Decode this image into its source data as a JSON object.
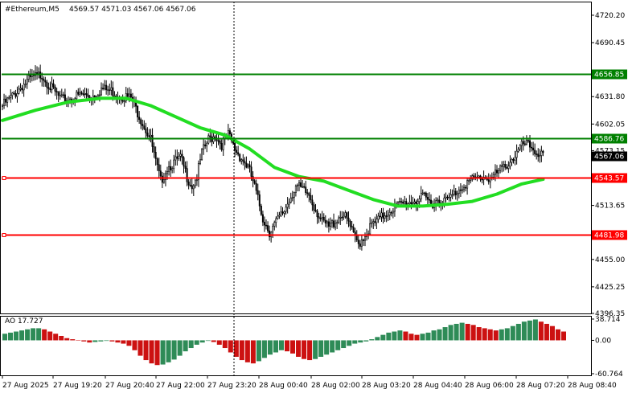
{
  "header": {
    "symbol": "#Ethereum,M5",
    "ohlc": "4569.57 4571.03 4567.06 4567.06"
  },
  "ao_label": "AO 17.727",
  "colors": {
    "background": "#ffffff",
    "candle": "#000000",
    "ma": "#22dd22",
    "resistance": "#008000",
    "support": "#ff0000",
    "ao_up": "#2e8b57",
    "ao_down": "#cc1111"
  },
  "chart_data": {
    "type": "line",
    "price_axis": {
      "ylim": [
        4396.35,
        4735
      ],
      "ticks": [
        "4720.20",
        "4690.45",
        "4631.80",
        "4602.05",
        "4573.15",
        "4513.65",
        "4455.00",
        "4425.25",
        "4396.35"
      ]
    },
    "ao_axis": {
      "ylim": [
        -60.764,
        38.714
      ],
      "ticks": [
        "38.714",
        "0.00",
        "-60.764"
      ]
    },
    "x_ticks": [
      "27 Aug 2025",
      "27 Aug 19:20",
      "27 Aug 20:40",
      "27 Aug 22:00",
      "27 Aug 23:20",
      "28 Aug 00:40",
      "28 Aug 02:00",
      "28 Aug 03:20",
      "28 Aug 04:40",
      "28 Aug 06:00",
      "28 Aug 07:20",
      "28 Aug 08:40"
    ],
    "levels": [
      {
        "value": 4656.85,
        "label": "4656.85",
        "color": "#008000"
      },
      {
        "value": 4586.76,
        "label": "4586.76",
        "color": "#008000"
      },
      {
        "value": 4543.57,
        "label": "4543.57",
        "color": "#ff0000"
      },
      {
        "value": 4481.98,
        "label": "4481.98",
        "color": "#ff0000"
      }
    ],
    "current_price": {
      "value": 4567.06,
      "label": "4567.06"
    },
    "price_path": [
      [
        0,
        4622
      ],
      [
        6,
        4632
      ],
      [
        12,
        4644
      ],
      [
        18,
        4652
      ],
      [
        24,
        4656
      ],
      [
        30,
        4640
      ],
      [
        36,
        4628
      ],
      [
        42,
        4630
      ],
      [
        48,
        4634
      ],
      [
        54,
        4632
      ],
      [
        60,
        4640
      ],
      [
        66,
        4638
      ],
      [
        72,
        4633
      ],
      [
        78,
        4630
      ],
      [
        82,
        4615
      ],
      [
        86,
        4600
      ],
      [
        90,
        4585
      ],
      [
        93,
        4560
      ],
      [
        96,
        4540
      ],
      [
        100,
        4555
      ],
      [
        104,
        4560
      ],
      [
        108,
        4565
      ],
      [
        112,
        4545
      ],
      [
        115,
        4535
      ],
      [
        118,
        4545
      ],
      [
        121,
        4570
      ],
      [
        125,
        4585
      ],
      [
        129,
        4590
      ],
      [
        133,
        4580
      ],
      [
        137,
        4590
      ],
      [
        141,
        4575
      ],
      [
        145,
        4565
      ],
      [
        149,
        4555
      ],
      [
        152,
        4540
      ],
      [
        155,
        4520
      ],
      [
        158,
        4500
      ],
      [
        162,
        4485
      ],
      [
        166,
        4495
      ],
      [
        170,
        4505
      ],
      [
        174,
        4520
      ],
      [
        178,
        4535
      ],
      [
        182,
        4530
      ],
      [
        186,
        4525
      ],
      [
        190,
        4510
      ],
      [
        194,
        4495
      ],
      [
        198,
        4490
      ],
      [
        202,
        4497
      ],
      [
        206,
        4505
      ],
      [
        210,
        4495
      ],
      [
        213,
        4480
      ],
      [
        216,
        4472
      ],
      [
        220,
        4482
      ],
      [
        224,
        4492
      ],
      [
        228,
        4497
      ],
      [
        232,
        4504
      ],
      [
        236,
        4510
      ],
      [
        240,
        4513
      ],
      [
        244,
        4516
      ],
      [
        248,
        4518
      ],
      [
        252,
        4520
      ],
      [
        256,
        4522
      ],
      [
        260,
        4516
      ],
      [
        264,
        4520
      ],
      [
        268,
        4518
      ],
      [
        272,
        4522
      ],
      [
        276,
        4530
      ],
      [
        280,
        4537
      ],
      [
        284,
        4540
      ],
      [
        288,
        4543
      ],
      [
        292,
        4545
      ],
      [
        296,
        4543
      ],
      [
        300,
        4548
      ],
      [
        304,
        4555
      ],
      [
        308,
        4562
      ],
      [
        312,
        4570
      ],
      [
        316,
        4580
      ],
      [
        320,
        4578
      ],
      [
        324,
        4572
      ],
      [
        328,
        4567
      ]
    ],
    "ma_path": [
      [
        0,
        4606
      ],
      [
        20,
        4617
      ],
      [
        40,
        4626
      ],
      [
        60,
        4630
      ],
      [
        75,
        4630
      ],
      [
        90,
        4622
      ],
      [
        105,
        4610
      ],
      [
        120,
        4598
      ],
      [
        135,
        4590
      ],
      [
        150,
        4575
      ],
      [
        165,
        4555
      ],
      [
        180,
        4545
      ],
      [
        195,
        4540
      ],
      [
        210,
        4530
      ],
      [
        225,
        4520
      ],
      [
        240,
        4513
      ],
      [
        255,
        4513
      ],
      [
        270,
        4515
      ],
      [
        285,
        4518
      ],
      [
        300,
        4526
      ],
      [
        315,
        4537
      ],
      [
        328,
        4542
      ]
    ],
    "ao_values": [
      12,
      14,
      16,
      18,
      20,
      22,
      22,
      20,
      16,
      12,
      8,
      4,
      2,
      0,
      -2,
      -4,
      -3,
      -2,
      -1,
      -2,
      -4,
      -6,
      -10,
      -18,
      -28,
      -36,
      -42,
      -45,
      -44,
      -40,
      -35,
      -28,
      -20,
      -14,
      -8,
      -4,
      -1,
      -3,
      -8,
      -14,
      -22,
      -30,
      -36,
      -40,
      -42,
      -38,
      -32,
      -26,
      -22,
      -18,
      -20,
      -24,
      -30,
      -34,
      -36,
      -34,
      -30,
      -26,
      -22,
      -18,
      -14,
      -10,
      -6,
      -4,
      -2,
      2,
      6,
      10,
      14,
      16,
      18,
      16,
      12,
      10,
      12,
      14,
      18,
      20,
      24,
      28,
      30,
      32,
      30,
      28,
      24,
      22,
      20,
      18,
      20,
      22,
      26,
      30,
      34,
      36,
      38,
      34,
      30,
      26,
      20,
      16
    ]
  }
}
